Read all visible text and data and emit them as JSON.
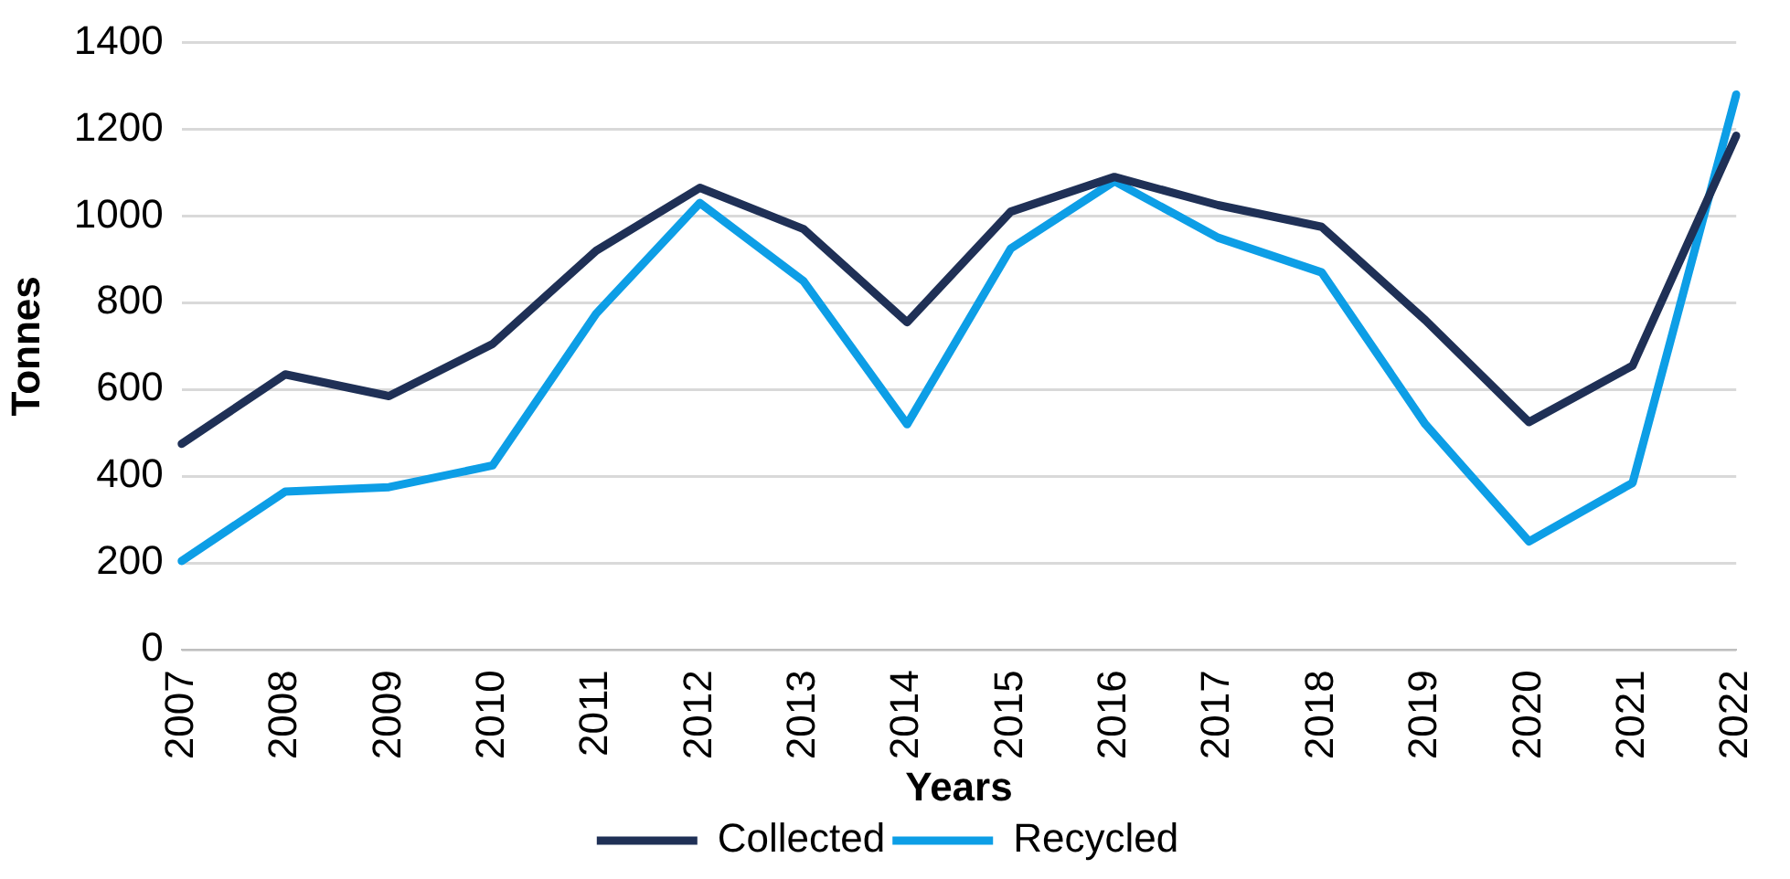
{
  "chart_data": {
    "type": "line",
    "xlabel": "Years",
    "ylabel": "Tonnes",
    "categories": [
      "2007",
      "2008",
      "2009",
      "2010",
      "2011",
      "2012",
      "2013",
      "2014",
      "2015",
      "2016",
      "2017",
      "2018",
      "2019",
      "2020",
      "2021",
      "2022"
    ],
    "series": [
      {
        "name": "Collected",
        "color": "#1f3056",
        "values": [
          475,
          635,
          585,
          705,
          920,
          1065,
          970,
          755,
          1010,
          1090,
          1025,
          975,
          760,
          525,
          655,
          1185
        ]
      },
      {
        "name": "Recycled",
        "color": "#0d9ee6",
        "values": [
          205,
          365,
          375,
          425,
          775,
          1030,
          850,
          520,
          925,
          1080,
          950,
          870,
          520,
          250,
          385,
          1280
        ]
      }
    ],
    "ylim": [
      0,
      1400
    ],
    "yticks": [
      0,
      200,
      400,
      600,
      800,
      1000,
      1200,
      1400
    ],
    "grid": "y",
    "legend": "bottom",
    "marker": "none",
    "line_style": "solid"
  }
}
